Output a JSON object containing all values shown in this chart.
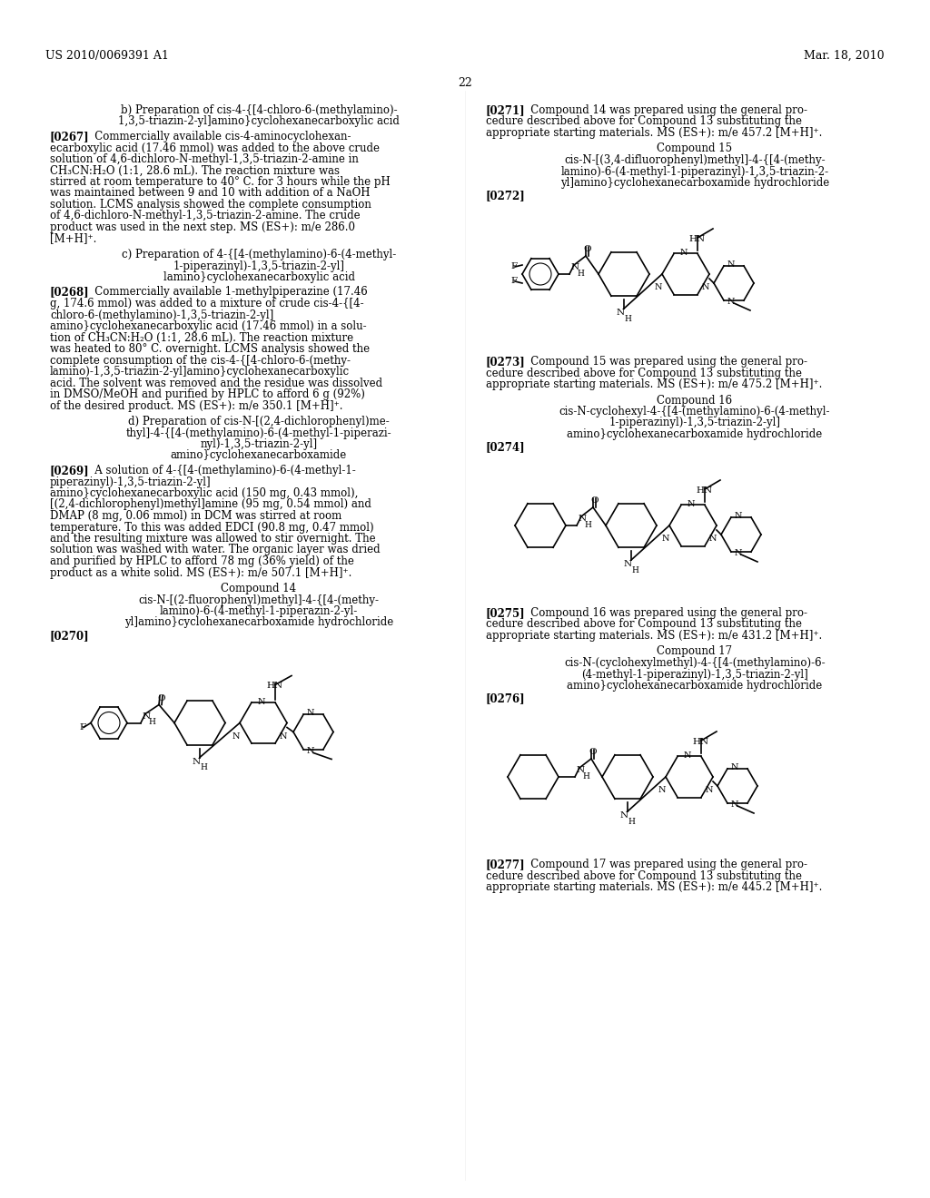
{
  "background_color": "#ffffff",
  "page_number": "22",
  "header_left": "US 2010/0069391 A1",
  "header_right": "Mar. 18, 2010",
  "left_column": {
    "blocks": [
      {
        "type": "heading_centered",
        "text": "b) Preparation of cis-4-{[4-chloro-6-(methylamino)-\n1,3,5-triazin-2-yl]amino}cyclohexanecarboxylic acid"
      },
      {
        "type": "paragraph",
        "bold_prefix": "[0267]",
        "text": "Commercially available cis-4-aminocyclohexan-\necarboxylic acid (17.46 mmol) was added to the above crude\nsolution of 4,6-dichloro-N-methyl-1,3,5-triazin-2-amine in\nCH₃CN:H₂O (1:1, 28.6 mL). The reaction mixture was\nstirred at room temperature to 40° C. for 3 hours while the pH\nwas maintained between 9 and 10 with addition of a NaOH\nsolution. LCMS analysis showed the complete consumption\nof 4,6-dichloro-N-methyl-1,3,5-triazin-2-amine. The crude\nproduct was used in the next step. MS (ES+): m/e 286.0\n[M+H]⁺."
      },
      {
        "type": "heading_centered",
        "text": "c) Preparation of 4-{[4-(methylamino)-6-(4-methyl-\n1-piperazinyl)-1,3,5-triazin-2-yl]\nlamino}cyclohexanecarboxylic acid"
      },
      {
        "type": "paragraph",
        "bold_prefix": "[0268]",
        "text": "Commercially available 1-methylpiperazine (17.46\ng, 174.6 mmol) was added to a mixture of crude cis-4-{[4-\nchloro-6-(methylamino)-1,3,5-triazin-2-yl]\namino}cyclohexanecarboxylic acid (17.46 mmol) in a solu-\ntion of CH₃CN:H₂O (1:1, 28.6 mL). The reaction mixture\nwas heated to 80° C. overnight. LCMS analysis showed the\ncomplete consumption of the cis-4-{[4-chloro-6-(methy-\nlamino)-1,3,5-triazin-2-yl]amino}cyclohexanecarboxylic\nacid. The solvent was removed and the residue was dissolved\nin DMSO/MeOH and purified by HPLC to afford 6 g (92%)\nof the desired product. MS (ES+): m/e 350.1 [M+H]⁺."
      },
      {
        "type": "heading_centered",
        "text": "d) Preparation of cis-N-[(2,4-dichlorophenyl)me-\nthyl]-4-{[4-(methylamino)-6-(4-methyl-1-piperazi-\nnyl)-1,3,5-triazin-2-yl]\namino}cyclohexanecarboxamide"
      },
      {
        "type": "paragraph",
        "bold_prefix": "[0269]",
        "text": "A solution of 4-{[4-(methylamino)-6-(4-methyl-1-\npiperazinyl)-1,3,5-triazin-2-yl]\namino}cyclohexanecarboxylic acid (150 mg, 0.43 mmol),\n[(2,4-dichlorophenyl)methyl]amine (95 mg, 0.54 mmol) and\nDMAP (8 mg, 0.06 mmol) in DCM was stirred at room\ntemperature. To this was added EDCI (90.8 mg, 0.47 mmol)\nand the resulting mixture was allowed to stir overnight. The\nsolution was washed with water. The organic layer was dried\nand purified by HPLC to afford 78 mg (36% yield) of the\nproduct as a white solid. MS (ES+): m/e 507.1 [M+H]⁺."
      },
      {
        "type": "compound_name_centered",
        "title": "Compound 14",
        "text": "cis-N-[(2-fluorophenyl)methyl]-4-{[4-(methy-\nlamino)-6-(4-methyl-1-piperazin-2-yl-\nyl]amino}cyclohexanecarboxamide hydrochloride"
      },
      {
        "type": "paragraph_bold_only",
        "bold_prefix": "[0270]"
      },
      {
        "type": "structure_image",
        "label": "compound14_left"
      }
    ]
  },
  "right_column": {
    "blocks": [
      {
        "type": "paragraph",
        "bold_prefix": "[0271]",
        "text": "Compound 14 was prepared using the general pro-\ncedure described above for Compound 13 substituting the\nappropriate starting materials. MS (ES+): m/e 457.2 [M+H]⁺."
      },
      {
        "type": "compound_name_centered",
        "title": "Compound 15",
        "text": "cis-N-[(3,4-difluorophenyl)methyl]-4-{[4-(methy-\nlamino)-6-(4-methyl-1-piperazinyl)-1,3,5-triazin-2-\nyl]amino}cyclohexanecarboxamide hydrochloride"
      },
      {
        "type": "paragraph_bold_only",
        "bold_prefix": "[0272]"
      },
      {
        "type": "structure_image",
        "label": "compound15_right"
      },
      {
        "type": "paragraph",
        "bold_prefix": "[0273]",
        "text": "Compound 15 was prepared using the general pro-\ncedure described above for Compound 13 substituting the\nappropriate starting materials. MS (ES+): m/e 475.2 [M+H]⁺."
      },
      {
        "type": "compound_name_centered",
        "title": "Compound 16",
        "text": "cis-N-cyclohexyl-4-{[4-(methylamino)-6-(4-methyl-\n1-piperazinyl)-1,3,5-triazin-2-yl]\namino}cyclohexanecarboxamide hydrochloride"
      },
      {
        "type": "paragraph_bold_only",
        "bold_prefix": "[0274]"
      },
      {
        "type": "structure_image",
        "label": "compound16_right"
      },
      {
        "type": "paragraph",
        "bold_prefix": "[0275]",
        "text": "Compound 16 was prepared using the general pro-\ncedure described above for Compound 13 substituting the\nappropriate starting materials. MS (ES+): m/e 431.2 [M+H]⁺."
      },
      {
        "type": "compound_name_centered",
        "title": "Compound 17",
        "text": "cis-N-(cyclohexylmethyl)-4-{[4-(methylamino)-6-\n(4-methyl-1-piperazinyl)-1,3,5-triazin-2-yl]\namino}cyclohexanecarboxamide hydrochloride"
      },
      {
        "type": "paragraph_bold_only",
        "bold_prefix": "[0276]"
      },
      {
        "type": "structure_image",
        "label": "compound17_right"
      },
      {
        "type": "paragraph",
        "bold_prefix": "[0277]",
        "text": "Compound 17 was prepared using the general pro-\ncedure described above for Compound 13 substituting the\nappropriate starting materials. MS (ES+): m/e 445.2 [M+H]⁺."
      }
    ]
  }
}
